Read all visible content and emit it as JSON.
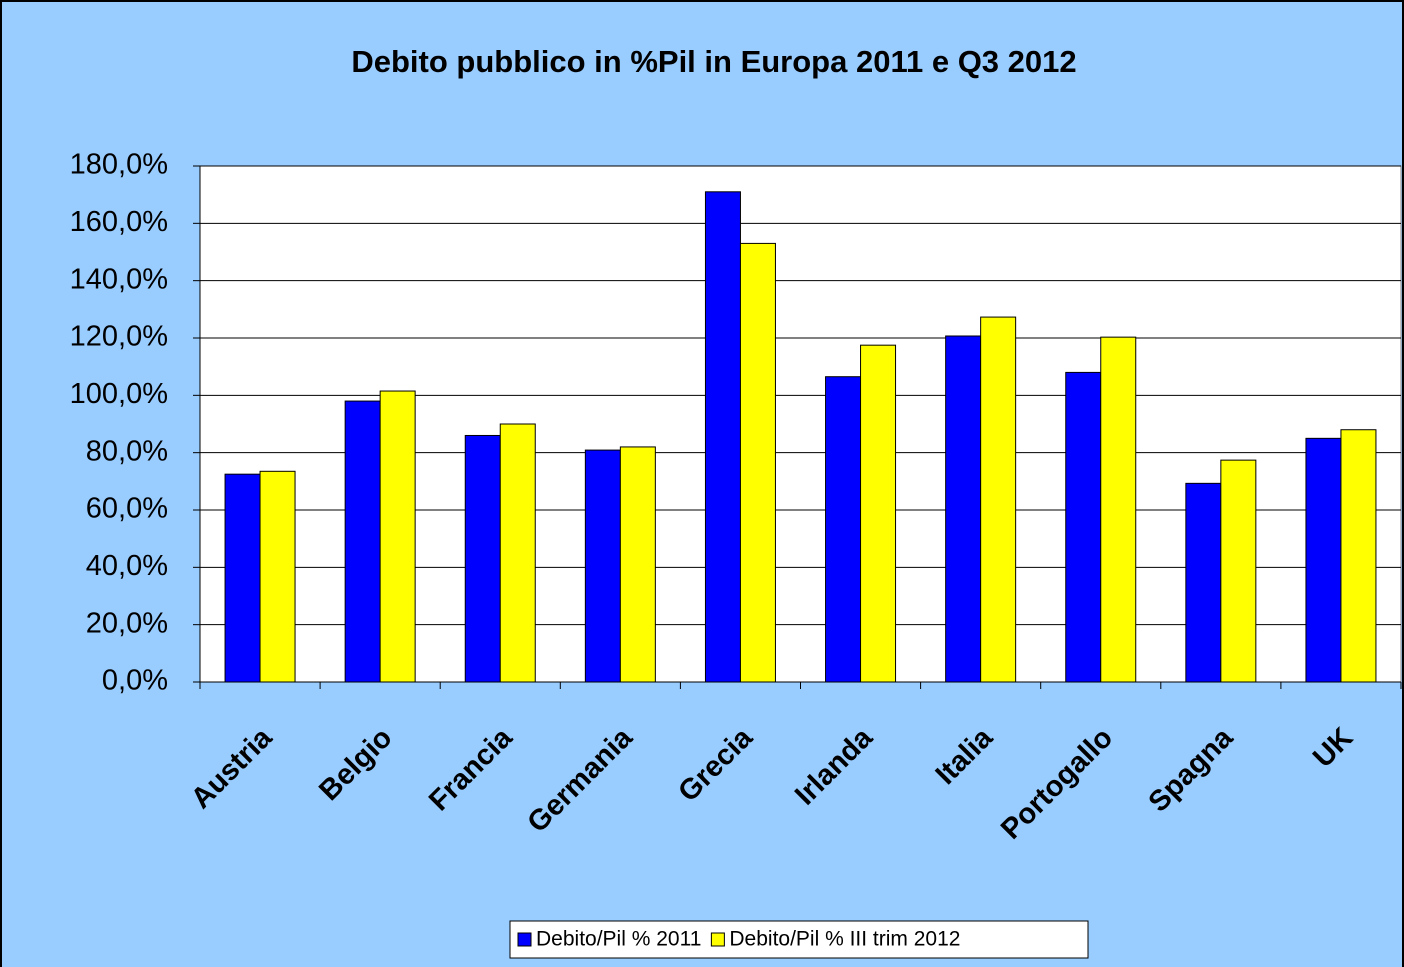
{
  "chart_data": {
    "type": "bar",
    "title": "Debito pubblico in %Pil in Europa 2011 e Q3 2012",
    "categories": [
      "Austria",
      "Belgio",
      "Francia",
      "Germania",
      "Grecia",
      "Irlanda",
      "Italia",
      "Portogallo",
      "Spagna",
      "UK"
    ],
    "series": [
      {
        "name": "Debito/Pil % 2011",
        "color": "#0000ff",
        "values": [
          72.5,
          98,
          86,
          80.9,
          171,
          106.5,
          120.7,
          108,
          69.3,
          85
        ]
      },
      {
        "name": "Debito/Pil % III trim 2012",
        "color": "#ffff00",
        "values": [
          73.5,
          101.5,
          90,
          82,
          153,
          117.5,
          127.3,
          120.3,
          77.4,
          88
        ]
      }
    ],
    "ylim": [
      0,
      180
    ],
    "yticks": [
      {
        "value": 0,
        "label": "0,0%"
      },
      {
        "value": 20,
        "label": "20,0%"
      },
      {
        "value": 40,
        "label": "40,0%"
      },
      {
        "value": 60,
        "label": "60,0%"
      },
      {
        "value": 80,
        "label": "80,0%"
      },
      {
        "value": 100,
        "label": "100,0%"
      },
      {
        "value": 120,
        "label": "120,0%"
      },
      {
        "value": 140,
        "label": "140,0%"
      },
      {
        "value": 160,
        "label": "160,0%"
      },
      {
        "value": 180,
        "label": "180,0%"
      }
    ],
    "grid": true
  }
}
